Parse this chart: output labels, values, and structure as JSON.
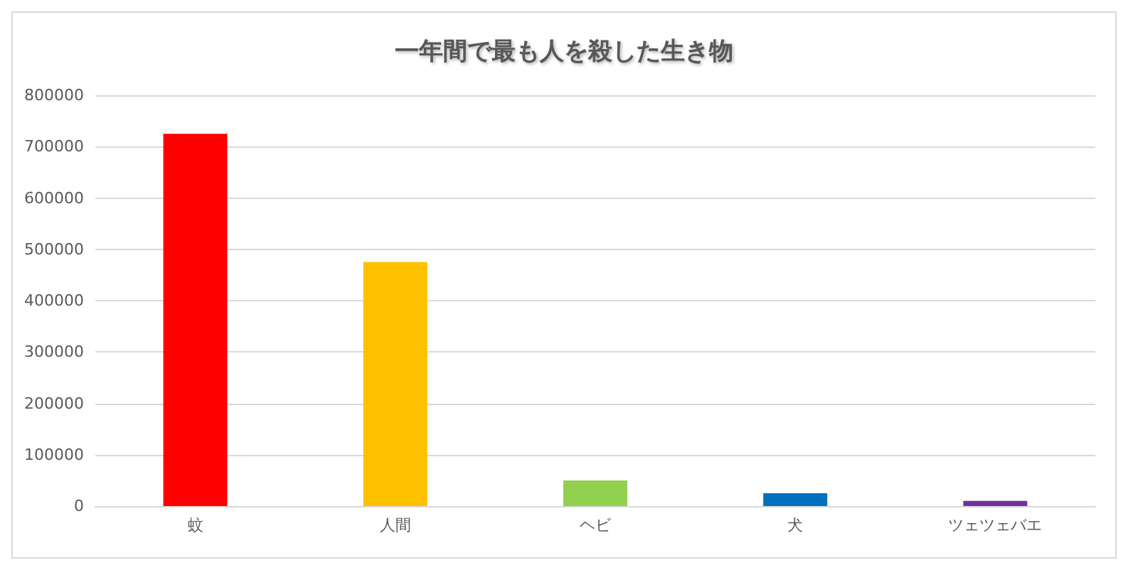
{
  "chart_data": {
    "type": "bar",
    "title": "一年間で最も人を殺した生き物",
    "categories": [
      "蚊",
      "人間",
      "ヘビ",
      "犬",
      "ツェツェバエ"
    ],
    "values": [
      725000,
      475000,
      50000,
      25000,
      10000
    ],
    "colors": [
      "#ff0000",
      "#ffc000",
      "#92d050",
      "#0070c0",
      "#7030a0"
    ],
    "ylim": [
      0,
      800000
    ],
    "yticks": [
      0,
      100000,
      200000,
      300000,
      400000,
      500000,
      600000,
      700000,
      800000
    ],
    "grid": "y"
  }
}
